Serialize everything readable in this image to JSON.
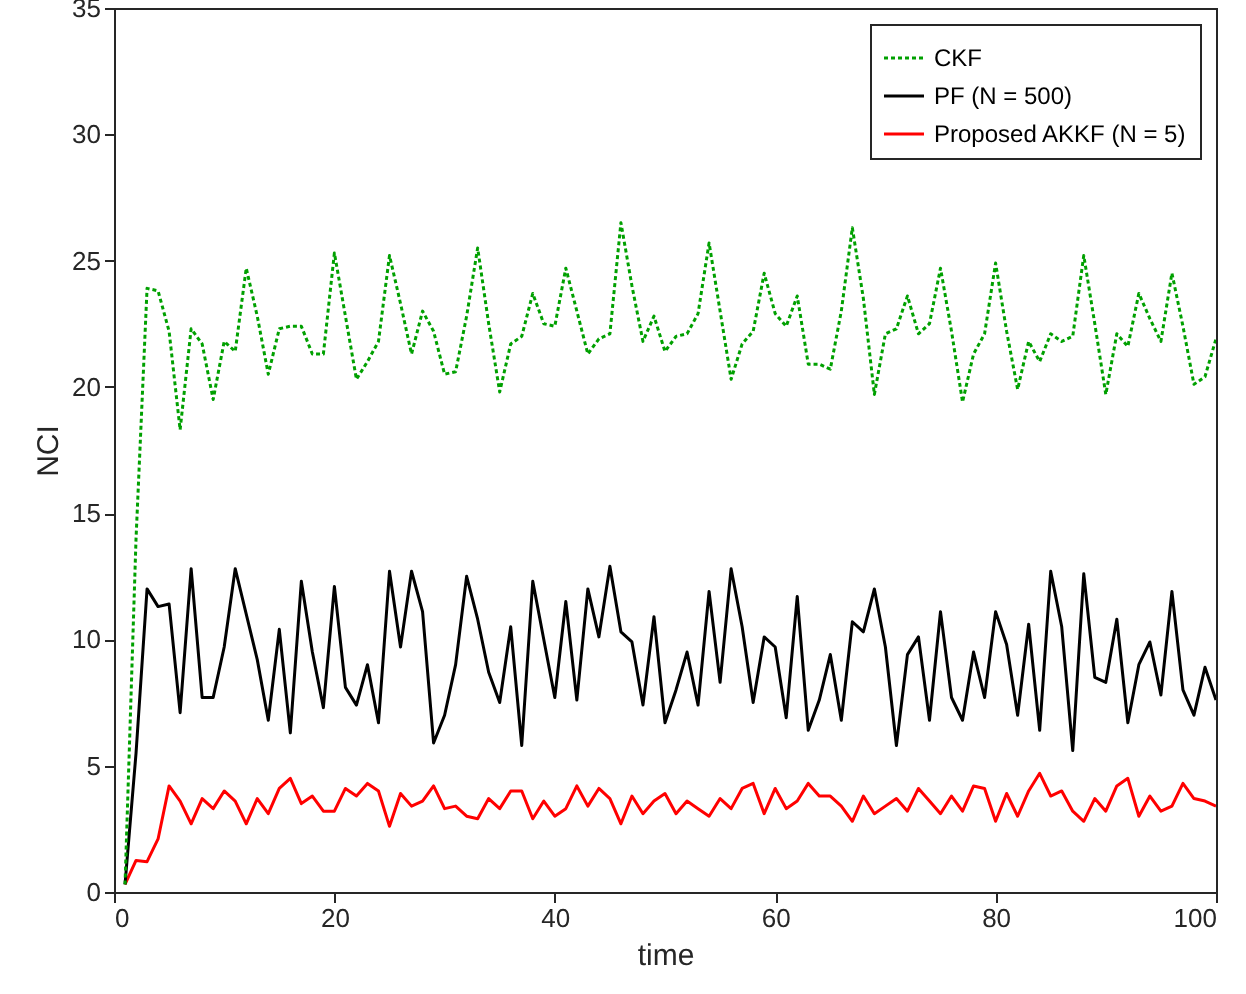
{
  "chart_data": {
    "type": "line",
    "xlabel": "time",
    "ylabel": "NCI",
    "x": [
      1,
      2,
      3,
      4,
      5,
      6,
      7,
      8,
      9,
      10,
      11,
      12,
      13,
      14,
      15,
      16,
      17,
      18,
      19,
      20,
      21,
      22,
      23,
      24,
      25,
      26,
      27,
      28,
      29,
      30,
      31,
      32,
      33,
      34,
      35,
      36,
      37,
      38,
      39,
      40,
      41,
      42,
      43,
      44,
      45,
      46,
      47,
      48,
      49,
      50,
      51,
      52,
      53,
      54,
      55,
      56,
      57,
      58,
      59,
      60,
      61,
      62,
      63,
      64,
      65,
      66,
      67,
      68,
      69,
      70,
      71,
      72,
      73,
      74,
      75,
      76,
      77,
      78,
      79,
      80,
      81,
      82,
      83,
      84,
      85,
      86,
      87,
      88,
      89,
      90,
      91,
      92,
      93,
      94,
      95,
      96,
      97,
      98,
      99,
      100
    ],
    "series": [
      {
        "name": "CKF",
        "color": "#00a000",
        "line_style": "dotted",
        "values": [
          0.3,
          14,
          23.9,
          23.8,
          22.2,
          18.3,
          22.3,
          21.7,
          19.5,
          21.8,
          21.4,
          24.7,
          22.8,
          20.5,
          22.3,
          22.4,
          22.4,
          21.3,
          21.3,
          25.3,
          22.8,
          20.3,
          21.0,
          21.8,
          25.2,
          23.3,
          21.3,
          23.0,
          22.2,
          20.5,
          20.6,
          22.8,
          25.5,
          22.5,
          19.8,
          21.7,
          22.0,
          23.7,
          22.5,
          22.4,
          24.7,
          23.0,
          21.3,
          21.9,
          22.1,
          26.5,
          24.0,
          21.8,
          22.8,
          21.4,
          22.0,
          22.1,
          22.9,
          25.7,
          23.0,
          20.3,
          21.7,
          22.2,
          24.5,
          22.9,
          22.4,
          23.6,
          20.9,
          20.9,
          20.7,
          23.0,
          26.3,
          23.5,
          19.7,
          22.1,
          22.3,
          23.6,
          22.1,
          22.5,
          24.7,
          22.2,
          19.4,
          21.3,
          22.1,
          24.9,
          22.2,
          19.9,
          21.8,
          21.0,
          22.1,
          21.8,
          22.0,
          25.2,
          22.5,
          19.7,
          22.1,
          21.6,
          23.7,
          22.7,
          21.8,
          24.5,
          22.4,
          20.1,
          20.4,
          21.9
        ]
      },
      {
        "name": "PF (N = 500)",
        "color": "#000000",
        "line_style": "solid",
        "values": [
          0.3,
          5.5,
          12.0,
          11.3,
          11.4,
          7.1,
          12.8,
          7.7,
          7.7,
          9.7,
          12.8,
          11.0,
          9.2,
          6.8,
          10.4,
          6.3,
          12.3,
          9.5,
          7.3,
          12.1,
          8.1,
          7.4,
          9.0,
          6.7,
          12.7,
          9.7,
          12.7,
          11.1,
          5.9,
          7.0,
          9.0,
          12.5,
          10.8,
          8.7,
          7.5,
          10.5,
          5.8,
          12.3,
          10.0,
          7.7,
          11.5,
          7.6,
          12.0,
          10.1,
          12.9,
          10.3,
          9.9,
          7.4,
          10.9,
          6.7,
          8.0,
          9.5,
          7.4,
          11.9,
          8.3,
          12.8,
          10.5,
          7.5,
          10.1,
          9.7,
          6.9,
          11.7,
          6.4,
          7.6,
          9.4,
          6.8,
          10.7,
          10.3,
          12.0,
          9.7,
          5.8,
          9.4,
          10.1,
          6.8,
          11.1,
          7.7,
          6.8,
          9.5,
          7.7,
          11.1,
          9.8,
          7.0,
          10.6,
          6.4,
          12.7,
          10.5,
          5.6,
          12.6,
          8.5,
          8.3,
          10.8,
          6.7,
          9.0,
          9.9,
          7.8,
          11.9,
          8.0,
          7.0,
          8.9,
          7.6
        ]
      },
      {
        "name": "Proposed AKKF (N = 5)",
        "color": "#ff0000",
        "line_style": "solid",
        "values": [
          0.3,
          1.25,
          1.2,
          2.1,
          4.2,
          3.6,
          2.7,
          3.7,
          3.3,
          4.0,
          3.6,
          2.7,
          3.7,
          3.1,
          4.1,
          4.5,
          3.5,
          3.8,
          3.2,
          3.2,
          4.1,
          3.8,
          4.3,
          4.0,
          2.6,
          3.9,
          3.4,
          3.6,
          4.2,
          3.3,
          3.4,
          3.0,
          2.9,
          3.7,
          3.3,
          4.0,
          4.0,
          2.9,
          3.6,
          3.0,
          3.3,
          4.2,
          3.4,
          4.1,
          3.7,
          2.7,
          3.8,
          3.1,
          3.6,
          3.9,
          3.1,
          3.6,
          3.3,
          3.0,
          3.7,
          3.3,
          4.1,
          4.3,
          3.1,
          4.1,
          3.3,
          3.6,
          4.3,
          3.8,
          3.8,
          3.4,
          2.8,
          3.8,
          3.1,
          3.4,
          3.7,
          3.2,
          4.1,
          3.6,
          3.1,
          3.8,
          3.2,
          4.2,
          4.1,
          2.8,
          3.9,
          3.0,
          4.0,
          4.7,
          3.8,
          4.0,
          3.2,
          2.8,
          3.7,
          3.2,
          4.2,
          4.5,
          3.0,
          3.8,
          3.2,
          3.4,
          4.3,
          3.7,
          3.6,
          3.4
        ]
      }
    ],
    "xlim": [
      0,
      100
    ],
    "xticks": [
      0,
      20,
      40,
      60,
      80,
      100
    ],
    "ylim": [
      0,
      35
    ],
    "yticks": [
      0,
      5,
      10,
      15,
      20,
      25,
      30,
      35
    ],
    "grid": false,
    "legend": "top right",
    "marker": "none"
  }
}
